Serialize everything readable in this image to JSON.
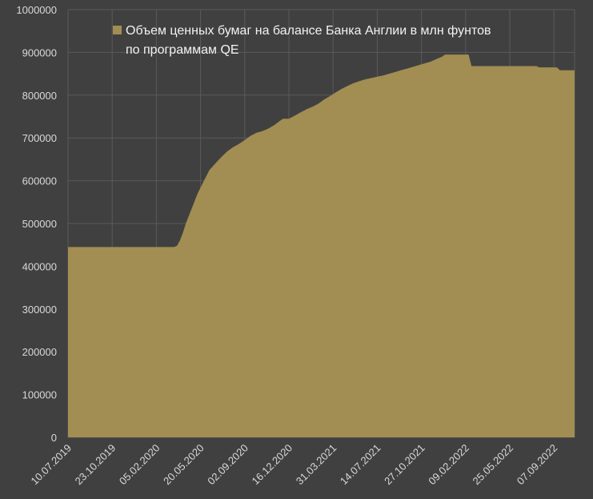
{
  "chart_data": {
    "type": "area",
    "title": "",
    "xlabel": "",
    "ylabel": "",
    "ylim": [
      0,
      1000000
    ],
    "y_ticks": [
      "0",
      "100000",
      "200000",
      "300000",
      "400000",
      "500000",
      "600000",
      "700000",
      "800000",
      "900000",
      "1000000"
    ],
    "x_range": [
      "2019-07-10",
      "2022-10-26"
    ],
    "x_ticks": [
      {
        "date": "2019-07-10",
        "label": "10.07.2019"
      },
      {
        "date": "2019-10-23",
        "label": "23.10.2019"
      },
      {
        "date": "2020-02-05",
        "label": "05.02.2020"
      },
      {
        "date": "2020-05-20",
        "label": "20.05.2020"
      },
      {
        "date": "2020-09-02",
        "label": "02.09.2020"
      },
      {
        "date": "2020-12-16",
        "label": "16.12.2020"
      },
      {
        "date": "2021-03-31",
        "label": "31.03.2021"
      },
      {
        "date": "2021-07-14",
        "label": "14.07.2021"
      },
      {
        "date": "2021-10-27",
        "label": "27.10.2021"
      },
      {
        "date": "2022-02-09",
        "label": "09.02.2022"
      },
      {
        "date": "2022-05-25",
        "label": "25.05.2022"
      },
      {
        "date": "2022-09-07",
        "label": "07.09.2022"
      }
    ],
    "grid": true,
    "legend_position": "top",
    "series": [
      {
        "name": "Объем ценных бумаг на балансе Банка Англии в млн фунтов по программам QE",
        "color": "#a28e52",
        "points": [
          [
            "2019-07-10",
            445000
          ],
          [
            "2020-03-18",
            445000
          ],
          [
            "2020-03-25",
            448000
          ],
          [
            "2020-04-01",
            460000
          ],
          [
            "2020-04-08",
            478000
          ],
          [
            "2020-04-15",
            500000
          ],
          [
            "2020-04-29",
            535000
          ],
          [
            "2020-05-13",
            570000
          ],
          [
            "2020-05-27",
            598000
          ],
          [
            "2020-06-10",
            625000
          ],
          [
            "2020-06-24",
            640000
          ],
          [
            "2020-07-08",
            655000
          ],
          [
            "2020-07-22",
            668000
          ],
          [
            "2020-08-05",
            678000
          ],
          [
            "2020-08-19",
            686000
          ],
          [
            "2020-09-02",
            695000
          ],
          [
            "2020-09-16",
            705000
          ],
          [
            "2020-09-30",
            712000
          ],
          [
            "2020-10-14",
            716000
          ],
          [
            "2020-10-28",
            722000
          ],
          [
            "2020-11-11",
            730000
          ],
          [
            "2020-11-25",
            740000
          ],
          [
            "2020-12-02",
            745000
          ],
          [
            "2020-12-16",
            745000
          ],
          [
            "2020-12-30",
            752000
          ],
          [
            "2021-01-13",
            760000
          ],
          [
            "2021-01-27",
            767000
          ],
          [
            "2021-02-10",
            773000
          ],
          [
            "2021-02-24",
            780000
          ],
          [
            "2021-03-10",
            790000
          ],
          [
            "2021-03-24",
            798000
          ],
          [
            "2021-04-07",
            807000
          ],
          [
            "2021-04-21",
            815000
          ],
          [
            "2021-05-05",
            822000
          ],
          [
            "2021-05-19",
            828000
          ],
          [
            "2021-06-02",
            833000
          ],
          [
            "2021-06-16",
            837000
          ],
          [
            "2021-06-30",
            840000
          ],
          [
            "2021-07-14",
            843000
          ],
          [
            "2021-07-28",
            846000
          ],
          [
            "2021-08-11",
            850000
          ],
          [
            "2021-08-25",
            854000
          ],
          [
            "2021-09-08",
            858000
          ],
          [
            "2021-09-22",
            862000
          ],
          [
            "2021-10-06",
            866000
          ],
          [
            "2021-10-20",
            870000
          ],
          [
            "2021-11-03",
            874000
          ],
          [
            "2021-11-17",
            878000
          ],
          [
            "2021-12-01",
            884000
          ],
          [
            "2021-12-15",
            890000
          ],
          [
            "2021-12-22",
            895000
          ],
          [
            "2022-02-09",
            895000
          ],
          [
            "2022-02-16",
            895000
          ],
          [
            "2022-02-23",
            868000
          ],
          [
            "2022-07-27",
            868000
          ],
          [
            "2022-08-03",
            865000
          ],
          [
            "2022-09-14",
            865000
          ],
          [
            "2022-09-21",
            858000
          ],
          [
            "2022-10-26",
            858000
          ]
        ]
      }
    ]
  }
}
